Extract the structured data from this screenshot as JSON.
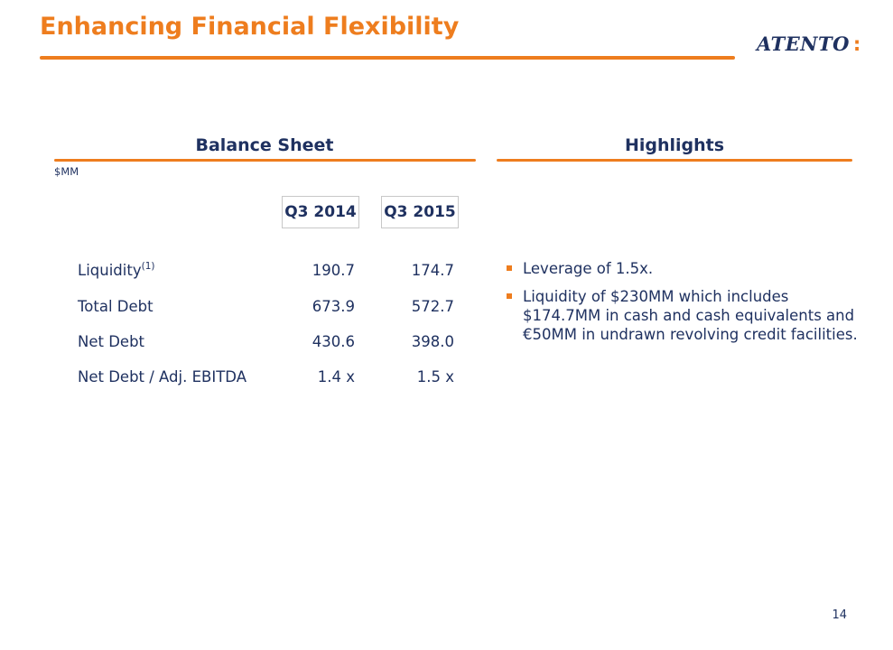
{
  "header": {
    "title": "Enhancing Financial Flexibility",
    "logo": {
      "text": "ATENTO",
      "colon": ":"
    }
  },
  "balance_sheet": {
    "heading": "Balance Sheet",
    "units": "$MM",
    "columns": [
      "Q3 2014",
      "Q3 2015"
    ],
    "rows": [
      {
        "label": "Liquidity",
        "superscript": "(1)",
        "q3_2014": "190.7",
        "q3_2015": "174.7"
      },
      {
        "label": "Total Debt",
        "superscript": "",
        "q3_2014": "673.9",
        "q3_2015": "572.7"
      },
      {
        "label": "Net Debt",
        "superscript": "",
        "q3_2014": "430.6",
        "q3_2015": "398.0"
      },
      {
        "label": "Net Debt / Adj. EBITDA",
        "superscript": "",
        "q3_2014": "1.4 x",
        "q3_2015": "1.5 x"
      }
    ]
  },
  "highlights": {
    "heading": "Highlights",
    "bullets": [
      "Leverage of 1.5x.",
      "Liquidity of $230MM which includes $174.7MM in cash and cash equivalents and €50MM in undrawn revolving credit facilities."
    ]
  },
  "footer": {
    "page_number": "14"
  },
  "colors": {
    "accent": "#ee7d1e",
    "text": "#1f3160"
  }
}
